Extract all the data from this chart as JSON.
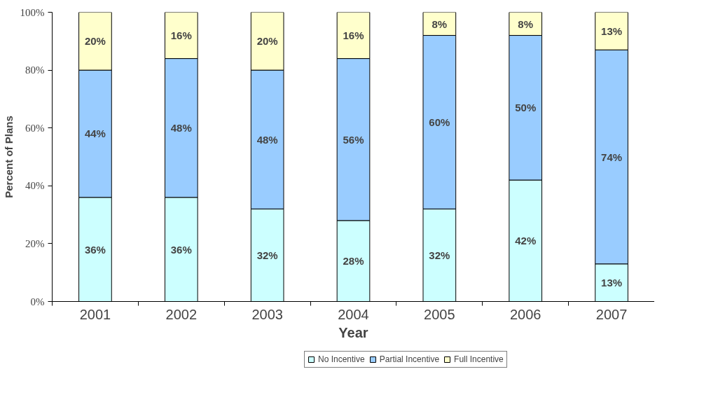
{
  "chart_data": {
    "type": "bar",
    "stacked": true,
    "xlabel": "Year",
    "ylabel": "Percent of Plans",
    "categories": [
      "2001",
      "2002",
      "2003",
      "2004",
      "2005",
      "2006",
      "2007"
    ],
    "series": [
      {
        "name": "No Incentive",
        "color": "#ccffff",
        "values": [
          36,
          36,
          32,
          28,
          32,
          42,
          13
        ],
        "value_labels": [
          "36%",
          "36%",
          "32%",
          "28%",
          "32%",
          "42%",
          "13%"
        ]
      },
      {
        "name": "Partial Incentive",
        "color": "#99ccff",
        "values": [
          44,
          48,
          48,
          56,
          60,
          50,
          74
        ],
        "value_labels": [
          "44%",
          "48%",
          "48%",
          "56%",
          "60%",
          "50%",
          "74%"
        ]
      },
      {
        "name": "Full Incentive",
        "color": "#ffffcc",
        "values": [
          20,
          16,
          20,
          16,
          8,
          8,
          13
        ],
        "value_labels": [
          "20%",
          "16%",
          "20%",
          "16%",
          "8%",
          "8%",
          "13%"
        ]
      }
    ],
    "ylim": [
      0,
      100
    ],
    "yticks": [
      {
        "value": 0,
        "label": "0%"
      },
      {
        "value": 20,
        "label": "20%"
      },
      {
        "value": 40,
        "label": "40%"
      },
      {
        "value": 60,
        "label": "60%"
      },
      {
        "value": 80,
        "label": "80%"
      },
      {
        "value": 100,
        "label": "100%"
      }
    ],
    "grid": false,
    "legend": "bottom"
  }
}
